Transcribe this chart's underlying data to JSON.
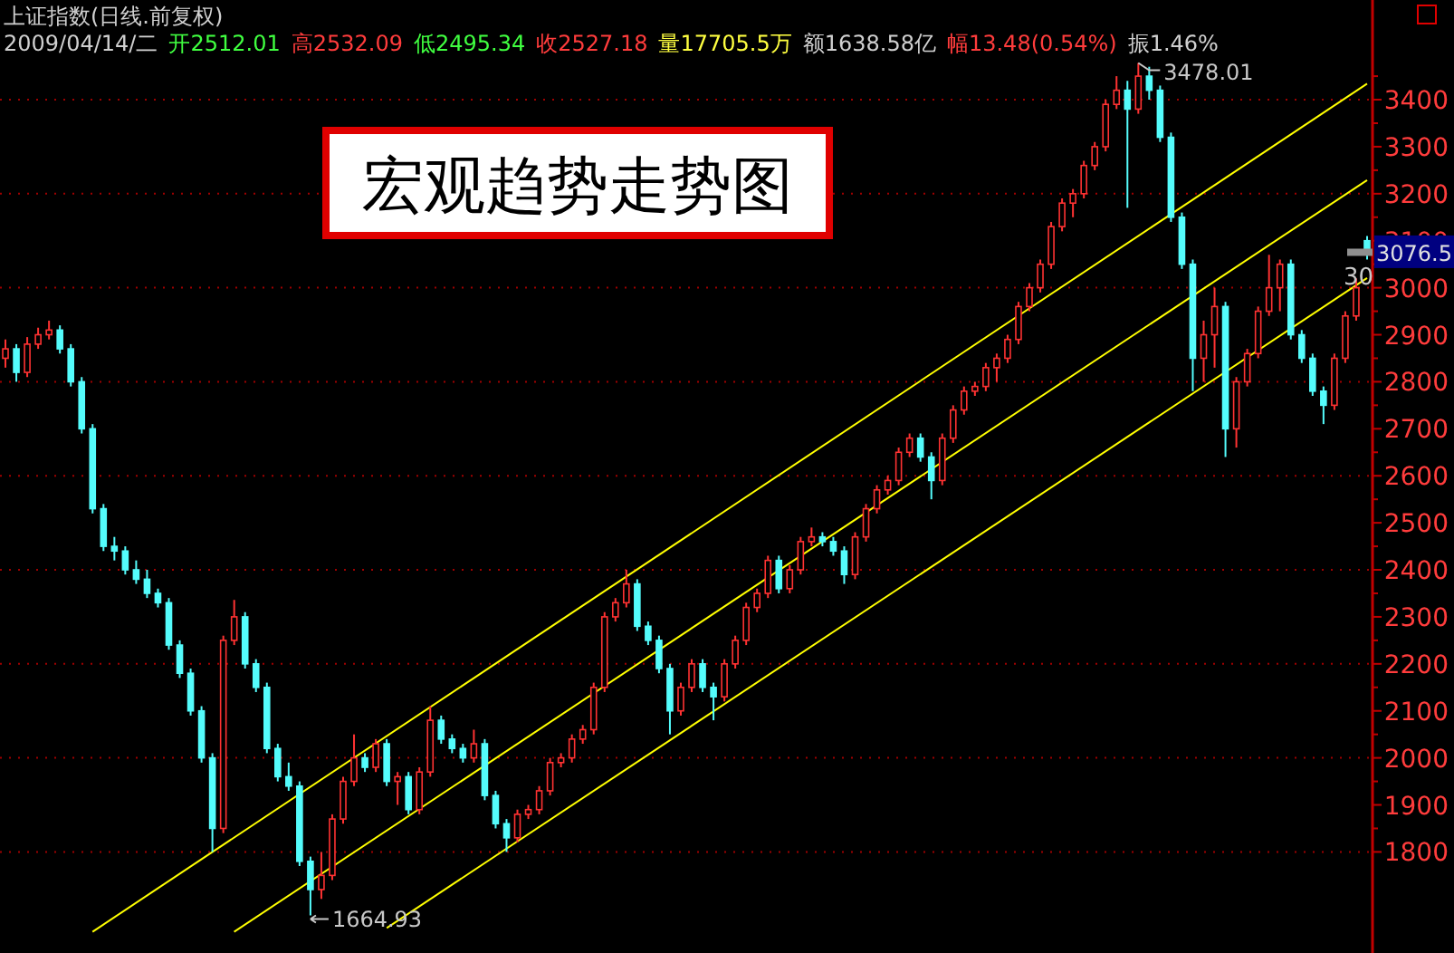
{
  "chart_data": {
    "type": "candlestick",
    "title": "宏观趋势走势图",
    "subtitle": "上证指数(日线.前复权)",
    "annotations": [
      "2009/04/14/二",
      "开2512.01",
      "高2532.09",
      "低2495.34",
      "收2527.18",
      "量17705.5万",
      "额1638.58亿",
      "幅13.48(0.54%)",
      "振1.46%",
      "3478.01",
      "1664.93",
      "3076.5",
      "30"
    ],
    "categories": [
      null,
      null,
      null,
      null,
      null,
      null,
      null,
      null,
      null,
      null,
      null,
      null,
      null,
      null,
      null,
      null,
      null,
      null,
      null,
      null,
      null,
      null,
      null,
      null,
      null,
      null,
      null,
      null,
      null,
      null,
      null,
      null,
      null,
      null,
      null,
      null,
      null,
      null,
      null,
      null,
      null,
      null,
      null,
      null,
      null,
      null,
      null,
      null,
      null,
      null,
      null,
      null,
      null,
      null,
      null,
      null,
      null,
      null,
      null,
      null,
      null,
      null,
      null,
      null,
      null,
      null,
      null,
      null,
      null,
      null,
      null,
      null,
      null,
      null,
      null,
      null,
      null,
      null,
      null,
      null,
      null,
      null,
      null,
      null,
      null,
      null,
      null,
      null,
      null,
      null,
      null,
      null,
      null,
      null,
      null,
      null,
      null,
      null,
      null,
      null,
      null,
      null,
      null,
      null,
      null,
      null,
      null,
      null,
      null,
      null,
      null,
      null,
      null,
      null,
      null,
      null,
      null,
      null,
      null,
      null,
      null,
      null,
      null,
      null,
      null,
      null
    ],
    "ohlc": [
      [
        2850,
        2890,
        2830,
        2870
      ],
      [
        2870,
        2880,
        2800,
        2820
      ],
      [
        2820,
        2895,
        2810,
        2880
      ],
      [
        2880,
        2915,
        2870,
        2900
      ],
      [
        2900,
        2930,
        2890,
        2910
      ],
      [
        2910,
        2920,
        2860,
        2870
      ],
      [
        2870,
        2880,
        2790,
        2800
      ],
      [
        2800,
        2810,
        2690,
        2700
      ],
      [
        2700,
        2710,
        2520,
        2530
      ],
      [
        2530,
        2540,
        2440,
        2450
      ],
      [
        2450,
        2470,
        2420,
        2440
      ],
      [
        2440,
        2450,
        2390,
        2400
      ],
      [
        2400,
        2420,
        2370,
        2380
      ],
      [
        2380,
        2400,
        2340,
        2350
      ],
      [
        2350,
        2360,
        2320,
        2330
      ],
      [
        2330,
        2340,
        2230,
        2240
      ],
      [
        2240,
        2250,
        2170,
        2180
      ],
      [
        2180,
        2190,
        2090,
        2100
      ],
      [
        2100,
        2110,
        1990,
        2000
      ],
      [
        2000,
        2010,
        1800,
        1850
      ],
      [
        1850,
        2260,
        1840,
        2250
      ],
      [
        2250,
        2336,
        2240,
        2300
      ],
      [
        2300,
        2310,
        2190,
        2200
      ],
      [
        2200,
        2210,
        2140,
        2150
      ],
      [
        2150,
        2160,
        2010,
        2020
      ],
      [
        2020,
        2030,
        1950,
        1960
      ],
      [
        1960,
        1990,
        1930,
        1940
      ],
      [
        1940,
        1950,
        1770,
        1780
      ],
      [
        1780,
        1790,
        1664.93,
        1720
      ],
      [
        1720,
        1800,
        1700,
        1750
      ],
      [
        1750,
        1880,
        1740,
        1870
      ],
      [
        1870,
        1960,
        1860,
        1950
      ],
      [
        1950,
        2050,
        1940,
        2000
      ],
      [
        2000,
        2010,
        1970,
        1980
      ],
      [
        1980,
        2040,
        1970,
        2030
      ],
      [
        2030,
        2040,
        1940,
        1950
      ],
      [
        1950,
        1970,
        1900,
        1960
      ],
      [
        1960,
        1970,
        1880,
        1890
      ],
      [
        1890,
        1980,
        1880,
        1970
      ],
      [
        1970,
        2110,
        1960,
        2080
      ],
      [
        2080,
        2090,
        2030,
        2040
      ],
      [
        2040,
        2050,
        2010,
        2020
      ],
      [
        2020,
        2030,
        1990,
        2000
      ],
      [
        2000,
        2060,
        1990,
        2030
      ],
      [
        2030,
        2040,
        1910,
        1920
      ],
      [
        1920,
        1930,
        1850,
        1860
      ],
      [
        1860,
        1870,
        1800,
        1830
      ],
      [
        1830,
        1890,
        1820,
        1880
      ],
      [
        1880,
        1900,
        1870,
        1890
      ],
      [
        1890,
        1940,
        1880,
        1930
      ],
      [
        1930,
        2000,
        1920,
        1990
      ],
      [
        1990,
        2010,
        1980,
        2000
      ],
      [
        2000,
        2050,
        1990,
        2040
      ],
      [
        2040,
        2070,
        2030,
        2060
      ],
      [
        2060,
        2160,
        2050,
        2150
      ],
      [
        2150,
        2310,
        2140,
        2300
      ],
      [
        2300,
        2340,
        2290,
        2330
      ],
      [
        2330,
        2400,
        2320,
        2370
      ],
      [
        2370,
        2380,
        2270,
        2280
      ],
      [
        2280,
        2290,
        2240,
        2250
      ],
      [
        2250,
        2260,
        2180,
        2190
      ],
      [
        2190,
        2200,
        2050,
        2100
      ],
      [
        2100,
        2160,
        2090,
        2150
      ],
      [
        2150,
        2210,
        2140,
        2200
      ],
      [
        2200,
        2210,
        2140,
        2150
      ],
      [
        2150,
        2160,
        2080,
        2130
      ],
      [
        2130,
        2210,
        2120,
        2200
      ],
      [
        2200,
        2260,
        2190,
        2250
      ],
      [
        2250,
        2330,
        2240,
        2320
      ],
      [
        2320,
        2360,
        2310,
        2350
      ],
      [
        2350,
        2430,
        2340,
        2420
      ],
      [
        2420,
        2430,
        2350,
        2360
      ],
      [
        2360,
        2410,
        2350,
        2400
      ],
      [
        2400,
        2470,
        2390,
        2460
      ],
      [
        2460,
        2490,
        2450,
        2470
      ],
      [
        2470,
        2480,
        2450,
        2460
      ],
      [
        2460,
        2470,
        2430,
        2440
      ],
      [
        2440,
        2450,
        2370,
        2390
      ],
      [
        2390,
        2480,
        2380,
        2470
      ],
      [
        2470,
        2540,
        2460,
        2530
      ],
      [
        2530,
        2580,
        2520,
        2570
      ],
      [
        2570,
        2600,
        2560,
        2590
      ],
      [
        2590,
        2660,
        2580,
        2650
      ],
      [
        2650,
        2690,
        2640,
        2680
      ],
      [
        2680,
        2690,
        2630,
        2640
      ],
      [
        2640,
        2650,
        2550,
        2590
      ],
      [
        2590,
        2690,
        2580,
        2680
      ],
      [
        2680,
        2750,
        2670,
        2740
      ],
      [
        2740,
        2790,
        2730,
        2780
      ],
      [
        2780,
        2800,
        2770,
        2790
      ],
      [
        2790,
        2840,
        2780,
        2830
      ],
      [
        2830,
        2860,
        2800,
        2850
      ],
      [
        2850,
        2900,
        2840,
        2890
      ],
      [
        2890,
        2970,
        2880,
        2960
      ],
      [
        2960,
        3010,
        2950,
        3000
      ],
      [
        3000,
        3060,
        2990,
        3050
      ],
      [
        3050,
        3140,
        3040,
        3130
      ],
      [
        3130,
        3190,
        3120,
        3180
      ],
      [
        3180,
        3210,
        3150,
        3200
      ],
      [
        3200,
        3270,
        3190,
        3260
      ],
      [
        3260,
        3310,
        3250,
        3300
      ],
      [
        3300,
        3400,
        3290,
        3390
      ],
      [
        3390,
        3450,
        3380,
        3420
      ],
      [
        3420,
        3440,
        3170,
        3380
      ],
      [
        3380,
        3478.01,
        3370,
        3450
      ],
      [
        3450,
        3470,
        3400,
        3420
      ],
      [
        3420,
        3430,
        3310,
        3320
      ],
      [
        3320,
        3330,
        3140,
        3150
      ],
      [
        3150,
        3160,
        3040,
        3050
      ],
      [
        3050,
        3060,
        2780,
        2850
      ],
      [
        2850,
        2930,
        2800,
        2900
      ],
      [
        2900,
        3000,
        2830,
        2960
      ],
      [
        2960,
        2970,
        2640,
        2700
      ],
      [
        2700,
        2810,
        2660,
        2800
      ],
      [
        2800,
        2870,
        2790,
        2860
      ],
      [
        2860,
        2960,
        2850,
        2950
      ],
      [
        2950,
        3070,
        2940,
        3000
      ],
      [
        3000,
        3060,
        2950,
        3050
      ],
      [
        3050,
        3060,
        2890,
        2900
      ],
      [
        2900,
        2910,
        2840,
        2850
      ],
      [
        2850,
        2860,
        2770,
        2780
      ],
      [
        2780,
        2790,
        2710,
        2750
      ],
      [
        2750,
        2860,
        2740,
        2850
      ],
      [
        2850,
        2950,
        2840,
        2940
      ],
      [
        2940,
        3020,
        2930,
        3000
      ],
      [
        3100,
        3110,
        3060,
        3076.5
      ]
    ],
    "series": [
      {
        "type": "line",
        "color": "#ffff00",
        "values": [
          null,
          null,
          null,
          null,
          null,
          null,
          null,
          null,
          1630,
          null,
          null,
          null,
          null,
          null,
          null,
          null,
          null,
          null,
          null,
          null,
          null,
          null,
          null,
          null,
          null,
          null,
          null,
          null,
          null,
          null,
          null,
          null,
          null,
          null,
          null,
          null,
          null,
          null,
          null,
          null,
          null,
          null,
          null,
          null,
          null,
          null,
          null,
          null,
          null,
          null,
          null,
          null,
          null,
          null,
          null,
          null,
          null,
          null,
          null,
          null,
          null,
          null,
          null,
          null,
          null,
          null,
          null,
          null,
          null,
          null,
          null,
          null,
          null,
          null,
          null,
          null,
          null,
          null,
          null,
          null,
          null,
          null,
          null,
          null,
          null,
          null,
          null,
          null,
          null,
          null,
          null,
          null,
          null,
          null,
          null,
          null,
          null,
          null,
          null,
          null,
          null,
          null,
          null,
          null,
          null,
          null,
          null,
          null,
          null,
          null,
          null,
          null,
          null,
          null,
          null,
          null,
          null,
          null,
          null,
          null,
          null,
          null,
          null,
          null,
          null,
          3434
        ]
      },
      {
        "type": "line",
        "color": "#ffff00",
        "values": [
          null,
          null,
          null,
          null,
          null,
          null,
          null,
          null,
          null,
          null,
          null,
          null,
          null,
          null,
          null,
          null,
          null,
          null,
          null,
          null,
          null,
          1630,
          null,
          null,
          null,
          null,
          null,
          null,
          null,
          null,
          null,
          null,
          null,
          null,
          null,
          null,
          null,
          null,
          null,
          null,
          null,
          null,
          null,
          null,
          null,
          null,
          null,
          null,
          null,
          null,
          null,
          null,
          null,
          null,
          null,
          null,
          null,
          null,
          null,
          null,
          null,
          null,
          null,
          null,
          null,
          null,
          null,
          null,
          null,
          null,
          null,
          null,
          null,
          null,
          null,
          null,
          null,
          null,
          null,
          null,
          null,
          null,
          null,
          null,
          null,
          null,
          null,
          null,
          null,
          null,
          null,
          null,
          null,
          null,
          null,
          null,
          null,
          null,
          null,
          null,
          null,
          null,
          null,
          null,
          null,
          null,
          null,
          null,
          null,
          null,
          null,
          null,
          null,
          null,
          null,
          null,
          null,
          null,
          null,
          null,
          null,
          null,
          null,
          null,
          null,
          3229
        ]
      },
      {
        "type": "line",
        "color": "#ffff00",
        "values": [
          null,
          null,
          null,
          null,
          null,
          null,
          null,
          null,
          null,
          null,
          null,
          null,
          null,
          null,
          null,
          null,
          null,
          null,
          null,
          null,
          null,
          null,
          null,
          null,
          null,
          null,
          null,
          null,
          null,
          null,
          null,
          null,
          null,
          null,
          null,
          1638,
          null,
          null,
          null,
          null,
          null,
          null,
          null,
          null,
          null,
          null,
          null,
          null,
          null,
          null,
          null,
          null,
          null,
          null,
          null,
          null,
          null,
          null,
          null,
          null,
          null,
          null,
          null,
          null,
          null,
          null,
          null,
          null,
          null,
          null,
          null,
          null,
          null,
          null,
          null,
          null,
          null,
          null,
          null,
          null,
          null,
          null,
          null,
          null,
          null,
          null,
          null,
          null,
          null,
          null,
          null,
          null,
          null,
          null,
          null,
          null,
          null,
          null,
          null,
          null,
          null,
          null,
          null,
          null,
          null,
          null,
          null,
          null,
          null,
          null,
          null,
          null,
          null,
          null,
          null,
          null,
          null,
          null,
          null,
          null,
          null,
          null,
          null,
          null,
          null,
          3021
        ]
      }
    ],
    "ylim": [
      1585,
      3612
    ],
    "yticks": [
      1800,
      1900,
      2000,
      2100,
      2200,
      2300,
      2400,
      2500,
      2600,
      2700,
      2800,
      2900,
      3000,
      3100,
      3200,
      3300,
      3400
    ],
    "tick_labels": "y",
    "grid": "y"
  }
}
